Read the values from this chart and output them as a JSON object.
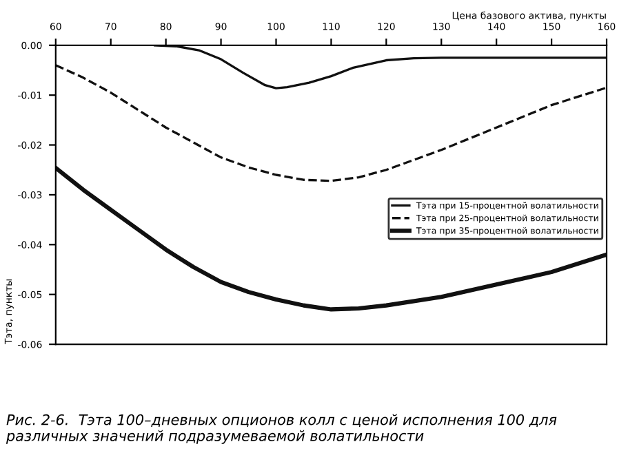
{
  "chart_data": {
    "type": "line",
    "xlabel": "Цена базового актива, пункты",
    "ylabel": "Тэта, пункты",
    "xlim": [
      60,
      160
    ],
    "xticks": [
      60,
      70,
      80,
      90,
      100,
      110,
      120,
      130,
      140,
      150,
      160
    ],
    "ylim": [
      -0.06,
      0
    ],
    "yticks": [
      {
        "value": 0,
        "label": "0.00"
      },
      {
        "value": -0.01,
        "label": "-0.01"
      },
      {
        "value": -0.02,
        "label": "-0.02"
      },
      {
        "value": -0.03,
        "label": "-0.03"
      },
      {
        "value": -0.04,
        "label": "-0.04"
      },
      {
        "value": -0.05,
        "label": "-0.05"
      },
      {
        "value": -0.06,
        "label": "-0.06"
      }
    ],
    "grid": false,
    "legend": "right",
    "marker": "none",
    "series": [
      {
        "name": "Тэта при 15-процентной волатильности",
        "color": "#111111",
        "line_style": "solid",
        "x": [
          78,
          82,
          86,
          90,
          94,
          98,
          100,
          102,
          106,
          110,
          114,
          120,
          125,
          130,
          140,
          150,
          160
        ],
        "values": [
          0,
          -0.0002,
          -0.001,
          -0.0028,
          -0.0055,
          -0.008,
          -0.0086,
          -0.0084,
          -0.0075,
          -0.0062,
          -0.0045,
          -0.003,
          -0.0026,
          -0.0025,
          -0.0025,
          -0.0025,
          -0.0025
        ]
      },
      {
        "name": "Тэта при 25-процентной волатильности",
        "color": "#111111",
        "line_style": "dashed",
        "x": [
          60,
          65,
          70,
          75,
          80,
          85,
          90,
          95,
          100,
          105,
          110,
          115,
          120,
          130,
          140,
          150,
          160
        ],
        "values": [
          -0.004,
          -0.0065,
          -0.0095,
          -0.013,
          -0.0165,
          -0.0195,
          -0.0225,
          -0.0245,
          -0.026,
          -0.027,
          -0.0272,
          -0.0265,
          -0.025,
          -0.021,
          -0.0165,
          -0.012,
          -0.0085
        ]
      },
      {
        "name": "Тэта при 35-процентной волатильности",
        "color": "#111111",
        "line_style": "solid",
        "x": [
          60,
          65,
          70,
          75,
          80,
          85,
          90,
          95,
          100,
          105,
          110,
          115,
          120,
          130,
          140,
          150,
          160
        ],
        "values": [
          -0.0246,
          -0.029,
          -0.033,
          -0.037,
          -0.041,
          -0.0445,
          -0.0475,
          -0.0495,
          -0.051,
          -0.0522,
          -0.053,
          -0.0528,
          -0.0522,
          -0.0505,
          -0.048,
          -0.0455,
          -0.042
        ]
      }
    ],
    "annotations": [
      "Рис. 2-6.  Тэта 100–дневных опционов колл с ценой исполнения 100 для различных значений подразумеваемой волатильности"
    ]
  }
}
